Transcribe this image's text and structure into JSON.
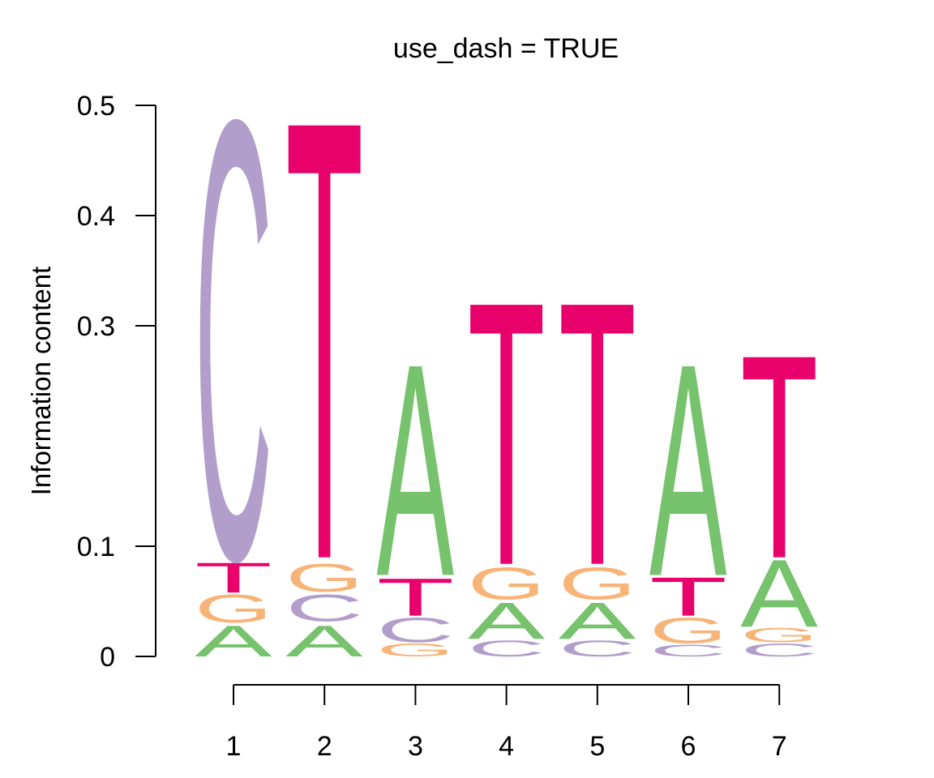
{
  "chart_data": {
    "type": "sequence-logo",
    "title": "use_dash = TRUE",
    "xlabel": "",
    "ylabel": "Information content",
    "ylim": [
      0,
      0.5
    ],
    "y_ticks": [
      0,
      0.1,
      0.3,
      0.4,
      0.5
    ],
    "y_tick_labels": [
      "0",
      "0.1",
      "0.3",
      "0.4",
      "0.5"
    ],
    "x_ticks": [
      1,
      2,
      3,
      4,
      5,
      6,
      7
    ],
    "x_tick_labels": [
      "1",
      "2",
      "3",
      "4",
      "5",
      "6",
      "7"
    ],
    "grid": false,
    "colors": {
      "A": "#77c26d",
      "C": "#b19ecb",
      "G": "#f8b377",
      "T": "#e8006b"
    },
    "positions": [
      {
        "pos": 1,
        "stack": [
          {
            "letter": "A",
            "bottom": 0.0,
            "top": 0.029
          },
          {
            "letter": "G",
            "bottom": 0.031,
            "top": 0.057
          },
          {
            "letter": "T",
            "bottom": 0.058,
            "top": 0.086
          },
          {
            "letter": "C",
            "bottom": 0.09,
            "top": 0.5
          }
        ]
      },
      {
        "pos": 2,
        "stack": [
          {
            "letter": "A",
            "bottom": 0.0,
            "top": 0.029
          },
          {
            "letter": "C",
            "bottom": 0.032,
            "top": 0.057
          },
          {
            "letter": "G",
            "bottom": 0.059,
            "top": 0.085
          },
          {
            "letter": "T",
            "bottom": 0.09,
            "top": 0.5
          }
        ]
      },
      {
        "pos": 3,
        "stack": [
          {
            "letter": "G",
            "bottom": 0.0,
            "top": 0.012
          },
          {
            "letter": "C",
            "bottom": 0.013,
            "top": 0.036
          },
          {
            "letter": "T",
            "bottom": 0.037,
            "top": 0.072
          },
          {
            "letter": "A",
            "bottom": 0.074,
            "top": 0.272
          }
        ]
      },
      {
        "pos": 4,
        "stack": [
          {
            "letter": "C",
            "bottom": 0.0,
            "top": 0.015
          },
          {
            "letter": "A",
            "bottom": 0.016,
            "top": 0.05
          },
          {
            "letter": "G",
            "bottom": 0.052,
            "top": 0.082
          },
          {
            "letter": "T",
            "bottom": 0.084,
            "top": 0.33
          }
        ]
      },
      {
        "pos": 5,
        "stack": [
          {
            "letter": "C",
            "bottom": 0.0,
            "top": 0.015
          },
          {
            "letter": "A",
            "bottom": 0.016,
            "top": 0.05
          },
          {
            "letter": "G",
            "bottom": 0.052,
            "top": 0.082
          },
          {
            "letter": "T",
            "bottom": 0.084,
            "top": 0.33
          }
        ]
      },
      {
        "pos": 6,
        "stack": [
          {
            "letter": "C",
            "bottom": 0.0,
            "top": 0.011
          },
          {
            "letter": "G",
            "bottom": 0.012,
            "top": 0.036
          },
          {
            "letter": "T",
            "bottom": 0.037,
            "top": 0.073
          },
          {
            "letter": "A",
            "bottom": 0.074,
            "top": 0.272
          }
        ]
      },
      {
        "pos": 7,
        "stack": [
          {
            "letter": "C",
            "bottom": 0.0,
            "top": 0.012
          },
          {
            "letter": "G",
            "bottom": 0.013,
            "top": 0.026
          },
          {
            "letter": "A",
            "bottom": 0.027,
            "top": 0.09
          },
          {
            "letter": "T",
            "bottom": 0.09,
            "top": 0.28
          }
        ]
      }
    ]
  }
}
